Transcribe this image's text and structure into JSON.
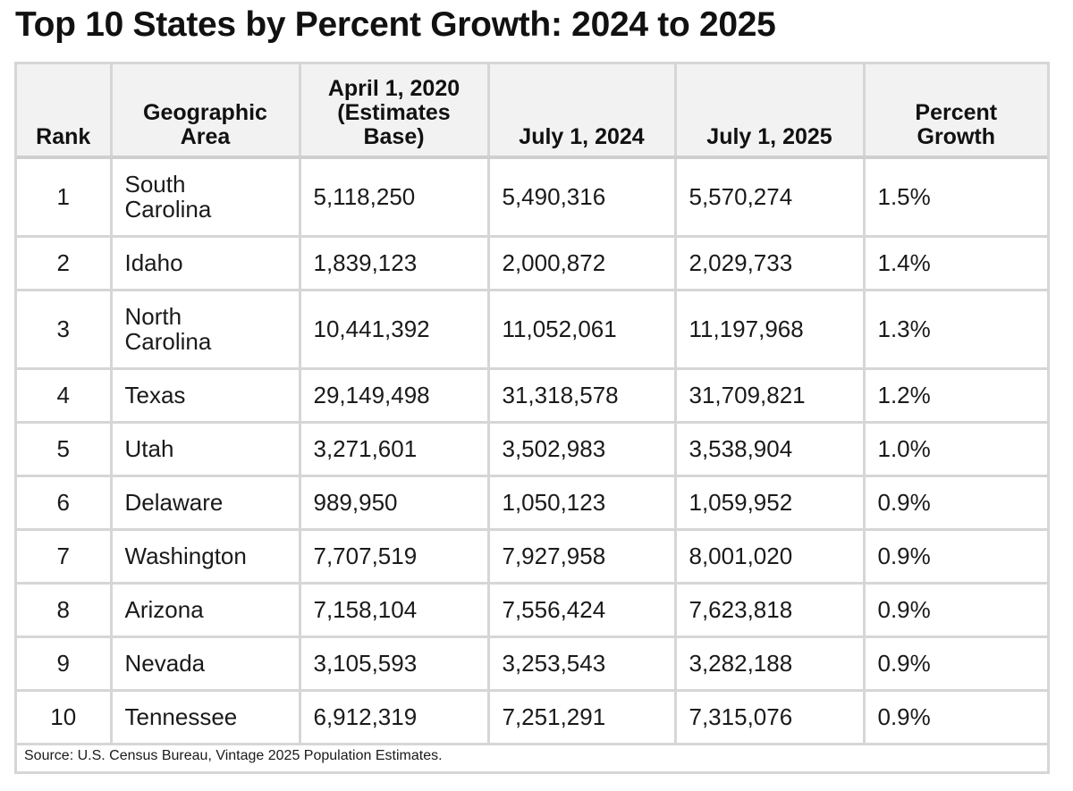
{
  "title": "Top 10 States by Percent Growth: 2024 to 2025",
  "table": {
    "headers": {
      "rank": "Rank",
      "area_line1": "Geographic",
      "area_line2": "Area",
      "base_line1": "April 1, 2020",
      "base_line2": "(Estimates",
      "base_line3": "Base)",
      "july2024": "July 1, 2024",
      "july2025": "July 1, 2025",
      "growth_line1": "Percent",
      "growth_line2": "Growth"
    },
    "rows": [
      {
        "rank": "1",
        "area_line1": "South",
        "area_line2": "Carolina",
        "base": "5,118,250",
        "july2024": "5,490,316",
        "july2025": "5,570,274",
        "growth": "1.5%"
      },
      {
        "rank": "2",
        "area": "Idaho",
        "base": "1,839,123",
        "july2024": "2,000,872",
        "july2025": "2,029,733",
        "growth": "1.4%"
      },
      {
        "rank": "3",
        "area_line1": "North",
        "area_line2": "Carolina",
        "base": "10,441,392",
        "july2024": "11,052,061",
        "july2025": "11,197,968",
        "growth": "1.3%"
      },
      {
        "rank": "4",
        "area": "Texas",
        "base": "29,149,498",
        "july2024": "31,318,578",
        "july2025": "31,709,821",
        "growth": "1.2%"
      },
      {
        "rank": "5",
        "area": "Utah",
        "base": "3,271,601",
        "july2024": "3,502,983",
        "july2025": "3,538,904",
        "growth": "1.0%"
      },
      {
        "rank": "6",
        "area": "Delaware",
        "base": "989,950",
        "july2024": "1,050,123",
        "july2025": "1,059,952",
        "growth": "0.9%"
      },
      {
        "rank": "7",
        "area": "Washington",
        "base": "7,707,519",
        "july2024": "7,927,958",
        "july2025": "8,001,020",
        "growth": "0.9%"
      },
      {
        "rank": "8",
        "area": "Arizona",
        "base": "7,158,104",
        "july2024": "7,556,424",
        "july2025": "7,623,818",
        "growth": "0.9%"
      },
      {
        "rank": "9",
        "area": "Nevada",
        "base": "3,105,593",
        "july2024": "3,253,543",
        "july2025": "3,282,188",
        "growth": "0.9%"
      },
      {
        "rank": "10",
        "area": "Tennessee",
        "base": "6,912,319",
        "july2024": "7,251,291",
        "july2025": "7,315,076",
        "growth": "0.9%"
      }
    ]
  },
  "source": "Source: U.S. Census Bureau, Vintage 2025 Population Estimates.",
  "colors": {
    "border": "#d6d6d6",
    "header_bg": "#f2f2f2",
    "text": "#1a1a1a"
  }
}
